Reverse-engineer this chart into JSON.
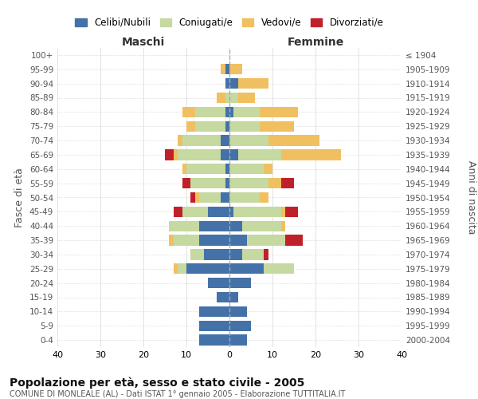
{
  "age_groups": [
    "0-4",
    "5-9",
    "10-14",
    "15-19",
    "20-24",
    "25-29",
    "30-34",
    "35-39",
    "40-44",
    "45-49",
    "50-54",
    "55-59",
    "60-64",
    "65-69",
    "70-74",
    "75-79",
    "80-84",
    "85-89",
    "90-94",
    "95-99",
    "100+"
  ],
  "birth_years": [
    "2000-2004",
    "1995-1999",
    "1990-1994",
    "1985-1989",
    "1980-1984",
    "1975-1979",
    "1970-1974",
    "1965-1969",
    "1960-1964",
    "1955-1959",
    "1950-1954",
    "1945-1949",
    "1940-1944",
    "1935-1939",
    "1930-1934",
    "1925-1929",
    "1920-1924",
    "1915-1919",
    "1910-1914",
    "1905-1909",
    "≤ 1904"
  ],
  "colors": {
    "celibi": "#4472a8",
    "coniugati": "#c5d9a0",
    "vedovi": "#f0c060",
    "divorziati": "#c0202a"
  },
  "legend_labels": [
    "Celibi/Nubili",
    "Coniugati/e",
    "Vedovi/e",
    "Divorziati/e"
  ],
  "maschi": {
    "celibi": [
      7,
      7,
      7,
      3,
      5,
      10,
      6,
      7,
      7,
      5,
      2,
      1,
      1,
      2,
      2,
      1,
      1,
      0,
      1,
      1,
      0
    ],
    "coniugati": [
      0,
      0,
      0,
      0,
      0,
      2,
      3,
      6,
      7,
      6,
      5,
      8,
      9,
      10,
      9,
      7,
      7,
      1,
      0,
      0,
      0
    ],
    "vedovi": [
      0,
      0,
      0,
      0,
      0,
      1,
      0,
      1,
      0,
      0,
      1,
      0,
      1,
      1,
      1,
      2,
      3,
      2,
      0,
      1,
      0
    ],
    "divorziati": [
      0,
      0,
      0,
      0,
      0,
      0,
      0,
      0,
      0,
      2,
      1,
      2,
      0,
      2,
      0,
      0,
      0,
      0,
      0,
      0,
      0
    ]
  },
  "femmine": {
    "nubili": [
      4,
      5,
      4,
      2,
      5,
      8,
      3,
      4,
      3,
      1,
      0,
      0,
      0,
      2,
      0,
      0,
      1,
      0,
      2,
      0,
      0
    ],
    "coniugate": [
      0,
      0,
      0,
      0,
      0,
      7,
      5,
      9,
      9,
      11,
      7,
      9,
      8,
      10,
      9,
      7,
      6,
      2,
      0,
      0,
      0
    ],
    "vedove": [
      0,
      0,
      0,
      0,
      0,
      0,
      0,
      0,
      1,
      1,
      2,
      3,
      2,
      14,
      12,
      8,
      9,
      4,
      7,
      3,
      0
    ],
    "divorziate": [
      0,
      0,
      0,
      0,
      0,
      0,
      1,
      4,
      0,
      3,
      0,
      3,
      0,
      0,
      0,
      0,
      0,
      0,
      0,
      0,
      0
    ]
  },
  "title": "Popolazione per età, sesso e stato civile - 2005",
  "subtitle": "COMUNE DI MONLEALE (AL) - Dati ISTAT 1° gennaio 2005 - Elaborazione TUTTITALIA.IT",
  "xlabel_left": "Maschi",
  "xlabel_right": "Femmine",
  "ylabel_left": "Fasce di età",
  "ylabel_right": "Anni di nascita",
  "xlim": 40,
  "bg_color": "#ffffff",
  "grid_color": "#cccccc"
}
